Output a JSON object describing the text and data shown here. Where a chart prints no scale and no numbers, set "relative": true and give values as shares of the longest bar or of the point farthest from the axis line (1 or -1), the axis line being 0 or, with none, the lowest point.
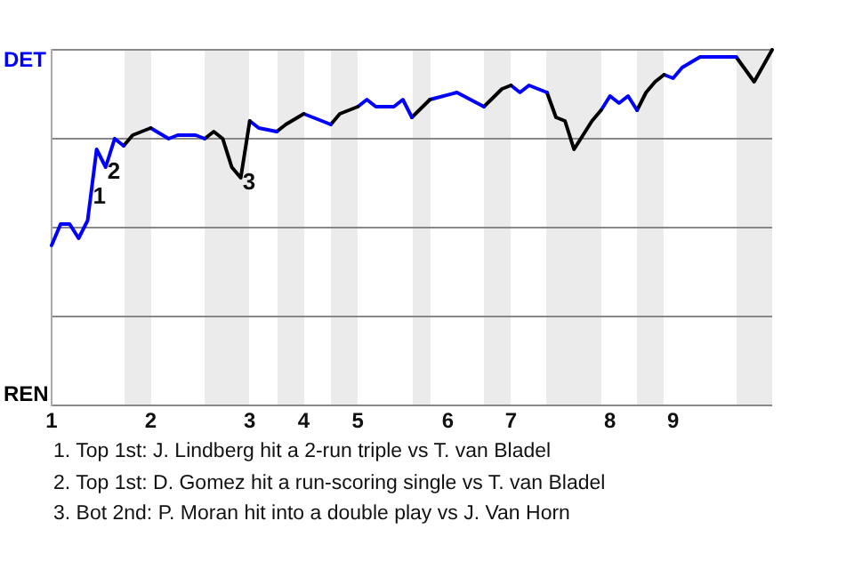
{
  "chart_data": {
    "type": "line",
    "categories": [
      "1",
      null,
      null,
      null,
      null,
      null,
      null,
      null,
      null,
      null,
      null,
      "2",
      null,
      null,
      null,
      null,
      null,
      null,
      null,
      null,
      null,
      null,
      "3",
      null,
      null,
      null,
      null,
      null,
      "4",
      null,
      null,
      null,
      null,
      null,
      "5",
      null,
      null,
      null,
      null,
      null,
      null,
      null,
      null,
      null,
      "6",
      null,
      null,
      null,
      null,
      null,
      null,
      "7",
      null,
      null,
      null,
      null,
      null,
      null,
      null,
      null,
      null,
      null,
      "8",
      null,
      null,
      null,
      null,
      null,
      null,
      "9",
      null,
      null,
      null,
      null,
      null,
      null,
      null,
      null,
      null,
      null,
      null
    ],
    "relative": true,
    "series": [
      {
        "name": "DET",
        "color": "#0000ff",
        "values": [
          0.45,
          0.51,
          0.51,
          0.47,
          0.52,
          0.72,
          0.67,
          0.75,
          0.73,
          null,
          null,
          null,
          null,
          null,
          null,
          null,
          null,
          null,
          null,
          null,
          null,
          null,
          null,
          null,
          null,
          null,
          null,
          null,
          null,
          null,
          null,
          null,
          null,
          null,
          null,
          null,
          null,
          null,
          null,
          null,
          null,
          null,
          null,
          null,
          null,
          null,
          null,
          null,
          null,
          null,
          null,
          null,
          null,
          null,
          null,
          null,
          null,
          null,
          null,
          null,
          null,
          null,
          null,
          null,
          null,
          null,
          null,
          null,
          null,
          null,
          null,
          null,
          null,
          null,
          null,
          null,
          null,
          null,
          null,
          null,
          null
        ]
      },
      {
        "name": "REN",
        "color": "#000000",
        "values": [
          null,
          null,
          null,
          null,
          null,
          null,
          null,
          null,
          0.73,
          0.76,
          null,
          0.78,
          null,
          null,
          null,
          null,
          null,
          null,
          null,
          null,
          null,
          null,
          null,
          null,
          null,
          null,
          null,
          null,
          null,
          null,
          null,
          null,
          null,
          null,
          null,
          null,
          null,
          null,
          null,
          null,
          null,
          null,
          null,
          null,
          null,
          null,
          null,
          null,
          null,
          null,
          null,
          null,
          null,
          null,
          null,
          null,
          null,
          null,
          null,
          null,
          null,
          null,
          null,
          null,
          null,
          null,
          null,
          null,
          null,
          null,
          null,
          null,
          null,
          null,
          null,
          null,
          null,
          null,
          null,
          null,
          null
        ]
      },
      {
        "color": "#0000ff",
        "values": [
          null,
          null,
          null,
          null,
          null,
          null,
          null,
          null,
          null,
          null,
          null,
          0.78,
          null,
          0.75,
          0.76,
          null,
          0.76,
          0.75,
          null,
          null,
          null,
          null,
          null,
          null,
          null,
          null,
          null,
          null,
          null,
          null,
          null,
          null,
          null,
          null,
          null,
          null,
          null,
          null,
          null,
          null,
          null,
          null,
          null,
          null,
          null,
          null,
          null,
          null,
          null,
          null,
          null,
          null,
          null,
          null,
          null,
          null,
          null,
          null,
          null,
          null,
          null,
          null,
          null,
          null,
          null,
          null,
          null,
          null,
          null,
          null,
          null,
          null,
          null,
          null,
          null,
          null,
          null,
          null,
          null,
          null,
          null
        ]
      },
      {
        "color": "#000000",
        "values": [
          null,
          null,
          null,
          null,
          null,
          null,
          null,
          null,
          null,
          null,
          null,
          null,
          null,
          null,
          null,
          null,
          null,
          0.75,
          0.77,
          0.75,
          0.67,
          0.64,
          0.8,
          null,
          null,
          null,
          null,
          null,
          null,
          null,
          null,
          null,
          null,
          null,
          null,
          null,
          null,
          null,
          null,
          null,
          null,
          null,
          null,
          null,
          null,
          null,
          null,
          null,
          null,
          null,
          null,
          null,
          null,
          null,
          null,
          null,
          null,
          null,
          null,
          null,
          null,
          null,
          null,
          null,
          null,
          null,
          null,
          null,
          null,
          null,
          null,
          null,
          null,
          null,
          null,
          null,
          null,
          null,
          null,
          null,
          null
        ]
      },
      {
        "color": "#0000ff",
        "values": [
          null,
          null,
          null,
          null,
          null,
          null,
          null,
          null,
          null,
          null,
          null,
          null,
          null,
          null,
          null,
          null,
          null,
          null,
          null,
          null,
          null,
          null,
          0.8,
          0.78,
          null,
          0.77,
          null,
          null,
          null,
          null,
          null,
          null,
          null,
          null,
          null,
          null,
          null,
          null,
          null,
          null,
          null,
          null,
          null,
          null,
          null,
          null,
          null,
          null,
          null,
          null,
          null,
          null,
          null,
          null,
          null,
          null,
          null,
          null,
          null,
          null,
          null,
          null,
          null,
          null,
          null,
          null,
          null,
          null,
          null,
          null,
          null,
          null,
          null,
          null,
          null,
          null,
          null,
          null,
          null,
          null,
          null
        ]
      },
      {
        "color": "#000000",
        "values": [
          null,
          null,
          null,
          null,
          null,
          null,
          null,
          null,
          null,
          null,
          null,
          null,
          null,
          null,
          null,
          null,
          null,
          null,
          null,
          null,
          null,
          null,
          null,
          null,
          null,
          0.77,
          0.79,
          null,
          0.82,
          null,
          null,
          null,
          null,
          null,
          null,
          null,
          null,
          null,
          null,
          null,
          null,
          null,
          null,
          null,
          null,
          null,
          null,
          null,
          null,
          null,
          null,
          null,
          null,
          null,
          null,
          null,
          null,
          null,
          null,
          null,
          null,
          null,
          null,
          null,
          null,
          null,
          null,
          null,
          null,
          null,
          null,
          null,
          null,
          null,
          null,
          null,
          null,
          null,
          null,
          null,
          null
        ]
      },
      {
        "color": "#0000ff",
        "values": [
          null,
          null,
          null,
          null,
          null,
          null,
          null,
          null,
          null,
          null,
          null,
          null,
          null,
          null,
          null,
          null,
          null,
          null,
          null,
          null,
          null,
          null,
          null,
          null,
          null,
          null,
          null,
          null,
          0.82,
          null,
          null,
          0.79,
          null,
          null,
          null,
          null,
          null,
          null,
          null,
          null,
          null,
          null,
          null,
          null,
          null,
          null,
          null,
          null,
          null,
          null,
          null,
          null,
          null,
          null,
          null,
          null,
          null,
          null,
          null,
          null,
          null,
          null,
          null,
          null,
          null,
          null,
          null,
          null,
          null,
          null,
          null,
          null,
          null,
          null,
          null,
          null,
          null,
          null,
          null,
          null,
          null
        ]
      },
      {
        "color": "#000000",
        "values": [
          null,
          null,
          null,
          null,
          null,
          null,
          null,
          null,
          null,
          null,
          null,
          null,
          null,
          null,
          null,
          null,
          null,
          null,
          null,
          null,
          null,
          null,
          null,
          null,
          null,
          null,
          null,
          null,
          null,
          null,
          null,
          0.79,
          0.82,
          null,
          0.84,
          null,
          null,
          null,
          null,
          null,
          null,
          null,
          null,
          null,
          null,
          null,
          null,
          null,
          null,
          null,
          null,
          null,
          null,
          null,
          null,
          null,
          null,
          null,
          null,
          null,
          null,
          null,
          null,
          null,
          null,
          null,
          null,
          null,
          null,
          null,
          null,
          null,
          null,
          null,
          null,
          null,
          null,
          null,
          null,
          null,
          null
        ]
      },
      {
        "color": "#0000ff",
        "values": [
          null,
          null,
          null,
          null,
          null,
          null,
          null,
          null,
          null,
          null,
          null,
          null,
          null,
          null,
          null,
          null,
          null,
          null,
          null,
          null,
          null,
          null,
          null,
          null,
          null,
          null,
          null,
          null,
          null,
          null,
          null,
          null,
          null,
          null,
          0.84,
          0.86,
          0.84,
          null,
          0.84,
          0.86,
          0.81,
          null,
          null,
          null,
          null,
          null,
          null,
          null,
          null,
          null,
          null,
          null,
          null,
          null,
          null,
          null,
          null,
          null,
          null,
          null,
          null,
          null,
          null,
          null,
          null,
          null,
          null,
          null,
          null,
          null,
          null,
          null,
          null,
          null,
          null,
          null,
          null,
          null,
          null,
          null,
          null
        ]
      },
      {
        "color": "#000000",
        "values": [
          null,
          null,
          null,
          null,
          null,
          null,
          null,
          null,
          null,
          null,
          null,
          null,
          null,
          null,
          null,
          null,
          null,
          null,
          null,
          null,
          null,
          null,
          null,
          null,
          null,
          null,
          null,
          null,
          null,
          null,
          null,
          null,
          null,
          null,
          null,
          null,
          null,
          null,
          null,
          null,
          0.81,
          null,
          0.86,
          null,
          null,
          null,
          null,
          null,
          null,
          null,
          null,
          null,
          null,
          null,
          null,
          null,
          null,
          null,
          null,
          null,
          null,
          null,
          null,
          null,
          null,
          null,
          null,
          null,
          null,
          null,
          null,
          null,
          null,
          null,
          null,
          null,
          null,
          null,
          null,
          null,
          null
        ]
      },
      {
        "color": "#0000ff",
        "values": [
          null,
          null,
          null,
          null,
          null,
          null,
          null,
          null,
          null,
          null,
          null,
          null,
          null,
          null,
          null,
          null,
          null,
          null,
          null,
          null,
          null,
          null,
          null,
          null,
          null,
          null,
          null,
          null,
          null,
          null,
          null,
          null,
          null,
          null,
          null,
          null,
          null,
          null,
          null,
          null,
          null,
          null,
          0.86,
          null,
          null,
          0.88,
          null,
          null,
          0.84,
          null,
          null,
          null,
          null,
          null,
          null,
          null,
          null,
          null,
          null,
          null,
          null,
          null,
          null,
          null,
          null,
          null,
          null,
          null,
          null,
          null,
          null,
          null,
          null,
          null,
          null,
          null,
          null,
          null,
          null,
          null,
          null
        ]
      },
      {
        "color": "#000000",
        "values": [
          null,
          null,
          null,
          null,
          null,
          null,
          null,
          null,
          null,
          null,
          null,
          null,
          null,
          null,
          null,
          null,
          null,
          null,
          null,
          null,
          null,
          null,
          null,
          null,
          null,
          null,
          null,
          null,
          null,
          null,
          null,
          null,
          null,
          null,
          null,
          null,
          null,
          null,
          null,
          null,
          null,
          null,
          null,
          null,
          null,
          null,
          null,
          null,
          0.84,
          null,
          0.89,
          0.9,
          null,
          null,
          null,
          null,
          null,
          null,
          null,
          null,
          null,
          null,
          null,
          null,
          null,
          null,
          null,
          null,
          null,
          null,
          null,
          null,
          null,
          null,
          null,
          null,
          null,
          null,
          null,
          null,
          null
        ]
      },
      {
        "color": "#0000ff",
        "values": [
          null,
          null,
          null,
          null,
          null,
          null,
          null,
          null,
          null,
          null,
          null,
          null,
          null,
          null,
          null,
          null,
          null,
          null,
          null,
          null,
          null,
          null,
          null,
          null,
          null,
          null,
          null,
          null,
          null,
          null,
          null,
          null,
          null,
          null,
          null,
          null,
          null,
          null,
          null,
          null,
          null,
          null,
          null,
          null,
          null,
          null,
          null,
          null,
          null,
          null,
          null,
          0.9,
          0.88,
          0.9,
          0.89,
          0.88,
          null,
          null,
          null,
          null,
          null,
          null,
          null,
          null,
          null,
          null,
          null,
          null,
          null,
          null,
          null,
          null,
          null,
          null,
          null,
          null,
          null,
          null,
          null,
          null,
          null
        ]
      },
      {
        "color": "#000000",
        "values": [
          null,
          null,
          null,
          null,
          null,
          null,
          null,
          null,
          null,
          null,
          null,
          null,
          null,
          null,
          null,
          null,
          null,
          null,
          null,
          null,
          null,
          null,
          null,
          null,
          null,
          null,
          null,
          null,
          null,
          null,
          null,
          null,
          null,
          null,
          null,
          null,
          null,
          null,
          null,
          null,
          null,
          null,
          null,
          null,
          null,
          null,
          null,
          null,
          null,
          null,
          null,
          null,
          null,
          null,
          null,
          0.88,
          0.81,
          0.8,
          0.72,
          null,
          0.8,
          0.83,
          null,
          null,
          null,
          null,
          null,
          null,
          null,
          null,
          null,
          null,
          null,
          null,
          null,
          null,
          null,
          null,
          null,
          null,
          null
        ]
      },
      {
        "color": "#0000ff",
        "values": [
          null,
          null,
          null,
          null,
          null,
          null,
          null,
          null,
          null,
          null,
          null,
          null,
          null,
          null,
          null,
          null,
          null,
          null,
          null,
          null,
          null,
          null,
          null,
          null,
          null,
          null,
          null,
          null,
          null,
          null,
          null,
          null,
          null,
          null,
          null,
          null,
          null,
          null,
          null,
          null,
          null,
          null,
          null,
          null,
          null,
          null,
          null,
          null,
          null,
          null,
          null,
          null,
          null,
          null,
          null,
          null,
          null,
          null,
          null,
          null,
          null,
          0.83,
          0.87,
          0.85,
          0.87,
          0.83,
          null,
          null,
          null,
          null,
          null,
          null,
          null,
          null,
          null,
          null,
          null,
          null,
          null,
          null,
          null
        ]
      },
      {
        "color": "#000000",
        "values": [
          null,
          null,
          null,
          null,
          null,
          null,
          null,
          null,
          null,
          null,
          null,
          null,
          null,
          null,
          null,
          null,
          null,
          null,
          null,
          null,
          null,
          null,
          null,
          null,
          null,
          null,
          null,
          null,
          null,
          null,
          null,
          null,
          null,
          null,
          null,
          null,
          null,
          null,
          null,
          null,
          null,
          null,
          null,
          null,
          null,
          null,
          null,
          null,
          null,
          null,
          null,
          null,
          null,
          null,
          null,
          null,
          null,
          null,
          null,
          null,
          null,
          null,
          null,
          null,
          null,
          0.83,
          0.88,
          0.91,
          0.93,
          null,
          null,
          null,
          null,
          null,
          null,
          null,
          null,
          null,
          null,
          null,
          null
        ]
      },
      {
        "color": "#0000ff",
        "values": [
          null,
          null,
          null,
          null,
          null,
          null,
          null,
          null,
          null,
          null,
          null,
          null,
          null,
          null,
          null,
          null,
          null,
          null,
          null,
          null,
          null,
          null,
          null,
          null,
          null,
          null,
          null,
          null,
          null,
          null,
          null,
          null,
          null,
          null,
          null,
          null,
          null,
          null,
          null,
          null,
          null,
          null,
          null,
          null,
          null,
          null,
          null,
          null,
          null,
          null,
          null,
          null,
          null,
          null,
          null,
          null,
          null,
          null,
          null,
          null,
          null,
          null,
          null,
          null,
          null,
          null,
          null,
          null,
          0.93,
          0.92,
          0.95,
          null,
          0.98,
          null,
          null,
          null,
          0.98,
          null,
          null,
          null,
          null
        ]
      },
      {
        "color": "#000000",
        "values": [
          null,
          null,
          null,
          null,
          null,
          null,
          null,
          null,
          null,
          null,
          null,
          null,
          null,
          null,
          null,
          null,
          null,
          null,
          null,
          null,
          null,
          null,
          null,
          null,
          null,
          null,
          null,
          null,
          null,
          null,
          null,
          null,
          null,
          null,
          null,
          null,
          null,
          null,
          null,
          null,
          null,
          null,
          null,
          null,
          null,
          null,
          null,
          null,
          null,
          null,
          null,
          null,
          null,
          null,
          null,
          null,
          null,
          null,
          null,
          null,
          null,
          null,
          null,
          null,
          null,
          null,
          null,
          null,
          null,
          null,
          null,
          null,
          null,
          null,
          null,
          null,
          0.98,
          null,
          0.91,
          null,
          1
        ]
      }
    ],
    "grid": "y",
    "legend": "left",
    "marker": "none",
    "line_style": "solid",
    "annotations": [
      {
        "text": "1",
        "y": 0.6
      },
      {
        "text": "2",
        "y": 0.67
      },
      {
        "text": "3",
        "y": 0.64
      },
      "1. Top 1st: J. Lindberg hit a 2-run triple vs T. van Bladel",
      "2. Top 1st: D. Gomez hit a run-scoring single vs T. van Bladel",
      "3. Bot 2nd: P. Moran hit into a double play vs J. Van Horn"
    ]
  }
}
